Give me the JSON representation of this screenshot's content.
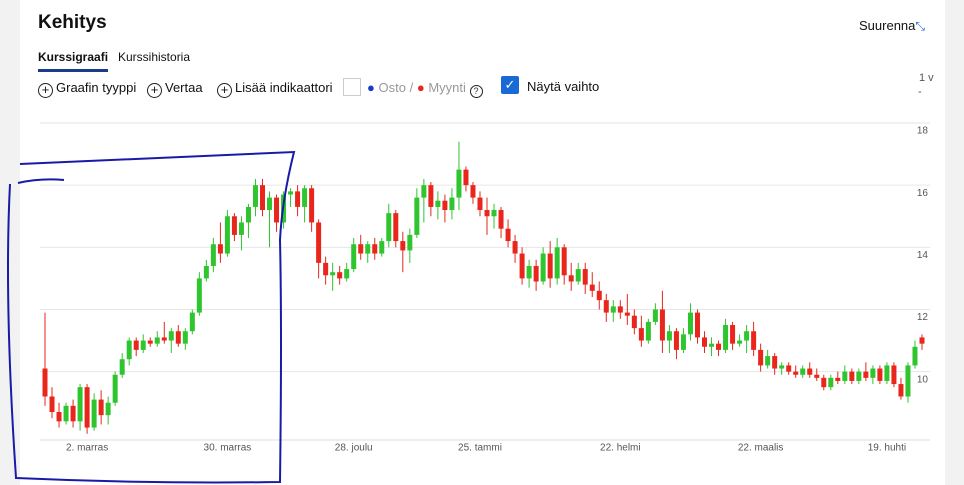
{
  "ui": {
    "title": "Kehitys",
    "zoom": "Suurenna",
    "tabs": [
      "Kurssigraafi",
      "Kurssihistoria"
    ],
    "tools": [
      "Graafin tyyppi",
      "Vertaa",
      "Lisää indikaattori"
    ],
    "buy": "Osto",
    "slash": "/",
    "sell": "Myynti",
    "help": "?",
    "show_volume": "Näytä vaihto",
    "period": "1 v",
    "minus": "-"
  },
  "chart_data": {
    "type": "candlestick",
    "up_color": "#2fc52f",
    "down_color": "#e8261c",
    "grid": true,
    "ylim": [
      7.8,
      18.2
    ],
    "yticks": [
      10,
      12,
      14,
      16,
      18
    ],
    "categories": [
      null,
      null,
      null,
      null,
      null,
      null,
      "2. marras",
      null,
      null,
      null,
      null,
      null,
      null,
      null,
      null,
      null,
      null,
      null,
      null,
      null,
      null,
      null,
      null,
      null,
      null,
      null,
      "30. marras",
      null,
      null,
      null,
      null,
      null,
      null,
      null,
      null,
      null,
      null,
      null,
      null,
      null,
      null,
      null,
      null,
      null,
      "28. joulu",
      null,
      null,
      null,
      null,
      null,
      null,
      null,
      null,
      null,
      null,
      null,
      null,
      null,
      null,
      null,
      null,
      null,
      "25. tammi",
      null,
      null,
      null,
      null,
      null,
      null,
      null,
      null,
      null,
      null,
      null,
      null,
      null,
      null,
      null,
      null,
      null,
      null,
      null,
      "22. helmi",
      null,
      null,
      null,
      null,
      null,
      null,
      null,
      null,
      null,
      null,
      null,
      null,
      null,
      null,
      null,
      null,
      null,
      null,
      null,
      "22. maalis",
      null,
      null,
      null,
      null,
      null,
      null,
      null,
      null,
      null,
      null,
      null,
      null,
      null,
      null,
      null,
      null,
      null,
      "19. huhti",
      null,
      null,
      null,
      null,
      null
    ],
    "ohlc": [
      [
        10.1,
        11.9,
        8.9,
        9.2
      ],
      [
        9.2,
        9.5,
        8.5,
        8.7
      ],
      [
        8.7,
        9.0,
        8.2,
        8.4
      ],
      [
        8.4,
        9.0,
        8.3,
        8.9
      ],
      [
        8.9,
        9.1,
        8.2,
        8.4
      ],
      [
        8.4,
        9.6,
        8.1,
        9.5
      ],
      [
        9.5,
        9.6,
        8.0,
        8.2
      ],
      [
        8.2,
        9.3,
        8.1,
        9.1
      ],
      [
        9.1,
        9.4,
        8.3,
        8.6
      ],
      [
        8.6,
        9.2,
        8.3,
        9.0
      ],
      [
        9.0,
        10.0,
        8.9,
        9.9
      ],
      [
        9.9,
        10.6,
        9.8,
        10.4
      ],
      [
        10.4,
        11.1,
        10.2,
        11.0
      ],
      [
        11.0,
        11.1,
        10.5,
        10.7
      ],
      [
        10.7,
        11.2,
        10.6,
        11.0
      ],
      [
        11.0,
        11.1,
        10.8,
        10.9
      ],
      [
        10.9,
        11.3,
        10.8,
        11.1
      ],
      [
        11.1,
        11.6,
        10.9,
        11.0
      ],
      [
        11.0,
        11.4,
        10.6,
        11.3
      ],
      [
        11.3,
        11.5,
        10.8,
        10.9
      ],
      [
        10.9,
        11.4,
        10.7,
        11.3
      ],
      [
        11.3,
        12.0,
        11.2,
        11.9
      ],
      [
        11.9,
        13.2,
        11.8,
        13.0
      ],
      [
        13.0,
        13.6,
        12.9,
        13.4
      ],
      [
        13.4,
        14.3,
        13.2,
        14.1
      ],
      [
        14.1,
        14.8,
        13.5,
        13.8
      ],
      [
        13.8,
        15.2,
        13.7,
        15.0
      ],
      [
        15.0,
        15.1,
        14.2,
        14.4
      ],
      [
        14.4,
        15.0,
        13.9,
        14.8
      ],
      [
        14.8,
        15.4,
        14.3,
        15.3
      ],
      [
        15.3,
        16.2,
        15.0,
        16.0
      ],
      [
        16.0,
        16.2,
        15.0,
        15.2
      ],
      [
        15.2,
        15.8,
        14.0,
        15.6
      ],
      [
        15.6,
        15.7,
        14.5,
        14.8
      ],
      [
        14.8,
        15.8,
        14.6,
        15.7
      ],
      [
        15.7,
        15.9,
        15.3,
        15.8
      ],
      [
        15.8,
        16.0,
        15.0,
        15.3
      ],
      [
        15.3,
        16.0,
        14.8,
        15.9
      ],
      [
        15.9,
        16.0,
        14.5,
        14.8
      ],
      [
        14.8,
        14.9,
        13.0,
        13.5
      ],
      [
        13.5,
        13.7,
        12.8,
        13.1
      ],
      [
        13.1,
        13.5,
        12.6,
        13.2
      ],
      [
        13.2,
        13.4,
        12.8,
        13.0
      ],
      [
        13.0,
        13.5,
        12.9,
        13.3
      ],
      [
        13.3,
        14.3,
        13.2,
        14.1
      ],
      [
        14.1,
        14.4,
        13.6,
        13.8
      ],
      [
        13.8,
        14.2,
        13.5,
        14.1
      ],
      [
        14.1,
        14.3,
        13.6,
        13.8
      ],
      [
        13.8,
        14.3,
        13.7,
        14.2
      ],
      [
        14.2,
        15.4,
        14.0,
        15.1
      ],
      [
        15.1,
        15.2,
        14.0,
        14.2
      ],
      [
        14.2,
        14.5,
        13.2,
        13.9
      ],
      [
        13.9,
        14.6,
        13.5,
        14.4
      ],
      [
        14.4,
        15.9,
        14.3,
        15.6
      ],
      [
        15.6,
        16.2,
        14.8,
        16.0
      ],
      [
        16.0,
        16.1,
        15.0,
        15.3
      ],
      [
        15.3,
        15.8,
        14.9,
        15.5
      ],
      [
        15.5,
        15.7,
        14.8,
        15.2
      ],
      [
        15.2,
        15.9,
        14.9,
        15.6
      ],
      [
        15.6,
        17.4,
        15.2,
        16.5
      ],
      [
        16.5,
        16.6,
        15.8,
        16.0
      ],
      [
        16.0,
        16.1,
        15.4,
        15.6
      ],
      [
        15.6,
        15.8,
        15.0,
        15.2
      ],
      [
        15.2,
        15.6,
        14.4,
        15.0
      ],
      [
        15.0,
        15.4,
        14.6,
        15.2
      ],
      [
        15.2,
        15.3,
        14.3,
        14.6
      ],
      [
        14.6,
        14.9,
        14.0,
        14.2
      ],
      [
        14.2,
        14.4,
        13.5,
        13.8
      ],
      [
        13.8,
        14.0,
        12.8,
        13.0
      ],
      [
        13.0,
        13.6,
        12.7,
        13.4
      ],
      [
        13.4,
        13.6,
        12.6,
        12.9
      ],
      [
        12.9,
        14.0,
        12.8,
        13.8
      ],
      [
        13.8,
        14.2,
        12.7,
        13.0
      ],
      [
        13.0,
        14.3,
        12.8,
        14.0
      ],
      [
        14.0,
        14.1,
        12.8,
        13.1
      ],
      [
        13.1,
        13.5,
        12.6,
        12.9
      ],
      [
        12.9,
        13.5,
        12.8,
        13.3
      ],
      [
        13.3,
        13.5,
        12.5,
        12.8
      ],
      [
        12.8,
        13.2,
        12.4,
        12.6
      ],
      [
        12.6,
        12.9,
        12.0,
        12.3
      ],
      [
        12.3,
        12.5,
        11.6,
        11.9
      ],
      [
        11.9,
        12.3,
        11.6,
        12.1
      ],
      [
        12.1,
        12.3,
        11.7,
        11.9
      ],
      [
        11.9,
        12.5,
        11.5,
        11.8
      ],
      [
        11.8,
        12.0,
        11.2,
        11.4
      ],
      [
        11.4,
        11.8,
        10.8,
        11.0
      ],
      [
        11.0,
        11.7,
        10.9,
        11.6
      ],
      [
        11.6,
        12.2,
        11.5,
        12.0
      ],
      [
        12.0,
        12.6,
        10.6,
        11.0
      ],
      [
        11.0,
        11.5,
        10.6,
        11.3
      ],
      [
        11.3,
        11.4,
        10.4,
        10.7
      ],
      [
        10.7,
        11.4,
        10.6,
        11.2
      ],
      [
        11.2,
        12.2,
        11.0,
        11.9
      ],
      [
        11.9,
        12.0,
        10.9,
        11.1
      ],
      [
        11.1,
        11.3,
        10.6,
        10.8
      ],
      [
        10.8,
        11.1,
        10.5,
        10.9
      ],
      [
        10.9,
        11.0,
        10.5,
        10.7
      ],
      [
        10.7,
        11.7,
        10.6,
        11.5
      ],
      [
        11.5,
        11.6,
        10.7,
        10.9
      ],
      [
        10.9,
        11.2,
        10.8,
        11.0
      ],
      [
        11.0,
        11.5,
        10.6,
        11.3
      ],
      [
        11.3,
        11.6,
        10.5,
        10.7
      ],
      [
        10.7,
        10.9,
        10.0,
        10.2
      ],
      [
        10.2,
        10.7,
        10.1,
        10.5
      ],
      [
        10.5,
        10.6,
        9.9,
        10.1
      ],
      [
        10.1,
        10.3,
        9.9,
        10.2
      ],
      [
        10.2,
        10.3,
        9.9,
        10.0
      ],
      [
        10.0,
        10.2,
        9.8,
        9.9
      ],
      [
        9.9,
        10.2,
        9.8,
        10.1
      ],
      [
        10.1,
        10.3,
        9.8,
        9.9
      ],
      [
        9.9,
        10.1,
        9.7,
        9.8
      ],
      [
        9.8,
        9.9,
        9.4,
        9.5
      ],
      [
        9.5,
        9.9,
        9.4,
        9.8
      ],
      [
        9.8,
        10.0,
        9.6,
        9.7
      ],
      [
        9.7,
        10.2,
        9.6,
        10.0
      ],
      [
        10.0,
        10.1,
        9.6,
        9.7
      ],
      [
        9.7,
        10.1,
        9.6,
        10.0
      ],
      [
        10.0,
        10.3,
        9.7,
        9.8
      ],
      [
        9.8,
        10.2,
        9.6,
        10.1
      ],
      [
        10.1,
        10.2,
        9.6,
        9.7
      ],
      [
        9.7,
        10.3,
        9.6,
        10.2
      ],
      [
        10.2,
        10.3,
        9.5,
        9.6
      ],
      [
        9.6,
        9.8,
        9.1,
        9.2
      ],
      [
        9.2,
        10.3,
        9.0,
        10.2
      ],
      [
        10.2,
        11.0,
        10.1,
        10.8
      ],
      [
        11.1,
        11.2,
        10.7,
        10.9
      ]
    ]
  }
}
